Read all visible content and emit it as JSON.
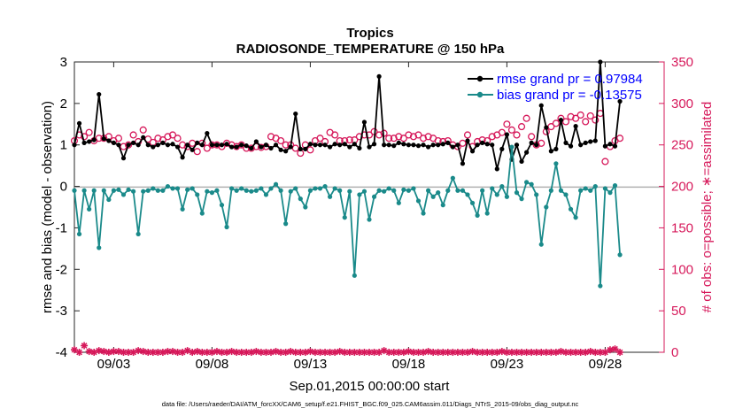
{
  "chart_data": {
    "type": "line",
    "title": "Tropics",
    "subtitle": "RADIOSONDE_TEMPERATURE @ 150 hPa",
    "xlabel": "Sep.01,2015 00:00:00 start",
    "ylabel": "rmse and bias (model - observation)",
    "ylabel_right": "# of obs: o=possible; ∗=assimilated",
    "footer": "data file: /Users/raeder/DAI/ATM_forcXX/CAM6_setup/f.e21.FHIST_BGC.f09_025.CAM6assim.011/Diags_NTrS_2015-09/obs_diag_output.nc",
    "xlim": [
      1.0,
      31.0
    ],
    "ylim": [
      -4,
      3
    ],
    "ylim_right": [
      0,
      350
    ],
    "x_ticks": [
      3,
      8,
      13,
      18,
      23,
      28
    ],
    "x_tick_labels": [
      "09/03",
      "09/08",
      "09/13",
      "09/18",
      "09/23",
      "09/28"
    ],
    "y_ticks": [
      -4,
      -3,
      -2,
      -1,
      0,
      1,
      2,
      3
    ],
    "y_tick_labels": [
      "-4",
      "-3",
      "-2",
      "-1",
      "0",
      "1",
      "2",
      "3"
    ],
    "y_right_ticks": [
      0,
      50,
      100,
      150,
      200,
      250,
      300,
      350
    ],
    "y_right_tick_labels": [
      "0",
      "50",
      "100",
      "150",
      "200",
      "250",
      "300",
      "350"
    ],
    "x_start": 1.0,
    "x_step": 0.25,
    "legend": [
      "rmse grand pr = 0.97984",
      "bias grand pr = -0.13575"
    ],
    "legend_position": "top-right",
    "series": [
      {
        "name": "rmse grand pr = 0.97984",
        "color": "#000000",
        "values": [
          1.0,
          1.52,
          1.05,
          1.08,
          1.12,
          2.22,
          1.15,
          1.1,
          1.05,
          1.0,
          0.68,
          1.0,
          1.05,
          1.0,
          1.18,
          1.0,
          0.95,
          1.0,
          1.05,
          1.0,
          1.02,
          0.95,
          0.7,
          1.0,
          0.88,
          1.05,
          1.0,
          1.28,
          1.0,
          1.0,
          1.0,
          1.02,
          0.95,
          0.95,
          1.0,
          0.98,
          0.92,
          1.08,
          0.95,
          1.0,
          0.92,
          1.0,
          0.88,
          0.85,
          0.95,
          1.75,
          0.9,
          0.9,
          1.02,
          1.0,
          1.0,
          1.0,
          0.95,
          1.02,
          1.0,
          1.02,
          0.95,
          1.02,
          0.92,
          1.55,
          0.95,
          1.02,
          2.65,
          1.0,
          1.0,
          0.98,
          1.05,
          1.02,
          1.0,
          1.0,
          0.98,
          1.0,
          0.95,
          1.0,
          1.0,
          1.02,
          1.05,
          0.95,
          1.0,
          0.55,
          1.1,
          0.85,
          1.0,
          1.05,
          1.02,
          1.0,
          0.42,
          0.9,
          1.25,
          0.65,
          1.0,
          0.6,
          0.82,
          1.05,
          1.0,
          1.95,
          1.42,
          0.85,
          0.9,
          1.6,
          1.05,
          0.97,
          1.45,
          1.0,
          1.05,
          1.08,
          1.1,
          3.0,
          0.97,
          1.02,
          0.97,
          2.05
        ]
      },
      {
        "name": "bias grand pr = -0.13575",
        "color": "#1a8a8a",
        "values": [
          -0.1,
          -1.15,
          -0.1,
          -0.55,
          -0.1,
          -1.48,
          -0.1,
          -0.32,
          -0.1,
          -0.08,
          -0.2,
          -0.08,
          -0.12,
          -1.15,
          -0.12,
          -0.1,
          -0.05,
          -0.1,
          -0.1,
          0.0,
          -0.05,
          -0.05,
          -0.55,
          -0.08,
          -0.05,
          -0.2,
          -0.65,
          -0.12,
          -0.15,
          -0.1,
          -0.45,
          -0.98,
          -0.05,
          -0.1,
          -0.05,
          -0.1,
          -0.12,
          -0.1,
          -0.05,
          -0.2,
          -0.05,
          0.05,
          -0.1,
          -0.9,
          -0.12,
          -0.05,
          -0.3,
          -0.5,
          -0.1,
          -0.05,
          -0.05,
          0.0,
          -0.25,
          -0.05,
          -0.1,
          -0.75,
          -0.12,
          -2.15,
          -0.2,
          -0.12,
          -0.8,
          -0.25,
          -0.1,
          -0.12,
          -0.05,
          -0.1,
          -0.4,
          -0.08,
          -0.1,
          -0.05,
          -0.35,
          -0.65,
          -0.1,
          -0.25,
          -0.15,
          -0.45,
          -0.1,
          0.2,
          -0.1,
          -0.1,
          -0.2,
          -0.4,
          -0.7,
          -0.1,
          -0.65,
          -0.05,
          -0.2,
          0.0,
          -0.25,
          0.95,
          -0.15,
          -0.3,
          0.1,
          0.05,
          -0.2,
          -1.4,
          -0.5,
          -0.1,
          0.55,
          -0.1,
          -0.2,
          -0.55,
          -0.75,
          -0.1,
          -0.05,
          -0.1,
          0.0,
          -2.4,
          -0.05,
          -0.15,
          0.02,
          -1.65
        ]
      },
      {
        "name": "obs possible",
        "axis": "right",
        "marker": "o",
        "color": "#d6185a",
        "values": [
          255,
          262,
          260,
          265,
          255,
          258,
          258,
          260,
          255,
          258,
          248,
          250,
          262,
          254,
          268,
          257,
          253,
          258,
          256,
          260,
          262,
          258,
          250,
          248,
          252,
          242,
          252,
          246,
          250,
          250,
          248,
          252,
          250,
          248,
          250,
          246,
          246,
          248,
          247,
          248,
          260,
          258,
          255,
          250,
          250,
          246,
          240,
          250,
          244,
          255,
          258,
          254,
          265,
          262,
          255,
          255,
          256,
          256,
          260,
          262,
          262,
          266,
          262,
          264,
          258,
          258,
          260,
          258,
          262,
          260,
          262,
          258,
          260,
          258,
          255,
          254,
          255,
          250,
          248,
          252,
          262,
          248,
          254,
          256,
          255,
          260,
          262,
          265,
          275,
          268,
          262,
          272,
          282,
          260,
          250,
          252,
          266,
          272,
          276,
          282,
          278,
          284,
          282,
          286,
          278,
          285,
          280,
          288,
          230,
          248,
          255,
          258
        ]
      },
      {
        "name": "obs assimilated",
        "axis": "right",
        "marker": "*",
        "color": "#d6185a",
        "values": [
          3,
          0,
          8,
          1,
          0,
          2,
          1,
          0,
          1,
          1,
          0,
          0,
          0,
          2,
          1,
          0,
          0,
          0,
          0,
          1,
          1,
          0,
          0,
          2,
          0,
          1,
          0,
          0,
          0,
          1,
          0,
          0,
          1,
          0,
          0,
          0,
          0,
          1,
          0,
          0,
          0,
          1,
          0,
          0,
          1,
          0,
          0,
          0,
          1,
          0,
          0,
          0,
          0,
          0,
          1,
          0,
          0,
          0,
          0,
          0,
          0,
          0,
          0,
          2,
          0,
          0,
          0,
          0,
          1,
          0,
          0,
          0,
          1,
          0,
          0,
          0,
          0,
          0,
          0,
          0,
          0,
          1,
          0,
          0,
          0,
          0,
          0,
          1,
          0,
          0,
          0,
          0,
          0,
          0,
          0,
          0,
          0,
          0,
          0,
          1,
          0,
          0,
          0,
          0,
          0,
          1,
          0,
          0,
          0,
          3,
          4,
          0
        ]
      }
    ]
  }
}
